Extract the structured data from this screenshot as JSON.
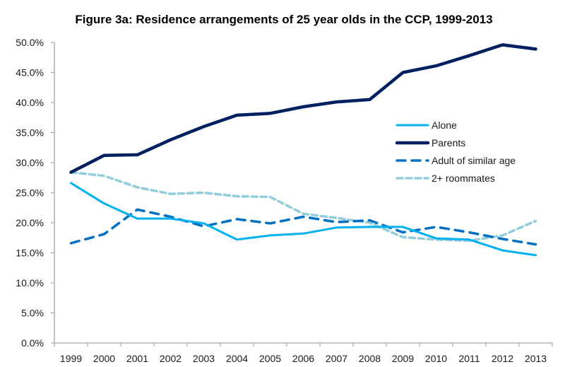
{
  "chart_data": {
    "type": "line",
    "title": "Figure 3a: Residence arrangements of 25 year olds in the CCP, 1999-2013",
    "xlabel": "",
    "ylabel": "",
    "x": [
      "1999",
      "2000",
      "2001",
      "2002",
      "2003",
      "2004",
      "2005",
      "2006",
      "2007",
      "2008",
      "2009",
      "2010",
      "2011",
      "2012",
      "2013"
    ],
    "ylim": [
      0,
      50
    ],
    "yticks": [
      0,
      5,
      10,
      15,
      20,
      25,
      30,
      35,
      40,
      45,
      50
    ],
    "ytick_labels": [
      "0.0%",
      "5.0%",
      "10.0%",
      "15.0%",
      "20.0%",
      "25.0%",
      "30.0%",
      "35.0%",
      "40.0%",
      "45.0%",
      "50.0%"
    ],
    "grid": false,
    "legend_position": "center-right",
    "series": [
      {
        "name": "Alone",
        "color": "#00B0F0",
        "style": "solid",
        "values": [
          26.6,
          23.2,
          20.7,
          20.7,
          19.9,
          17.2,
          17.9,
          18.2,
          19.2,
          19.3,
          19.3,
          17.4,
          17.2,
          15.4,
          14.6
        ]
      },
      {
        "name": "Parents",
        "color": "#002060",
        "style": "solid-thick",
        "values": [
          28.4,
          31.2,
          31.3,
          33.8,
          36.0,
          37.9,
          38.2,
          39.3,
          40.1,
          40.5,
          45.0,
          46.1,
          47.8,
          49.6,
          48.9
        ]
      },
      {
        "name": "Adult of similar age",
        "color": "#0070C0",
        "style": "dashed",
        "values": [
          16.6,
          18.1,
          22.2,
          21.0,
          19.4,
          20.6,
          19.9,
          21.0,
          20.1,
          20.4,
          18.4,
          19.3,
          18.4,
          17.3,
          16.4
        ]
      },
      {
        "name": "2+ roommates",
        "color": "#92CDDC",
        "style": "dashed-short",
        "values": [
          28.4,
          27.8,
          25.9,
          24.8,
          25.0,
          24.4,
          24.3,
          21.5,
          20.8,
          20.0,
          17.6,
          17.2,
          17.0,
          17.9,
          20.3
        ]
      }
    ]
  }
}
